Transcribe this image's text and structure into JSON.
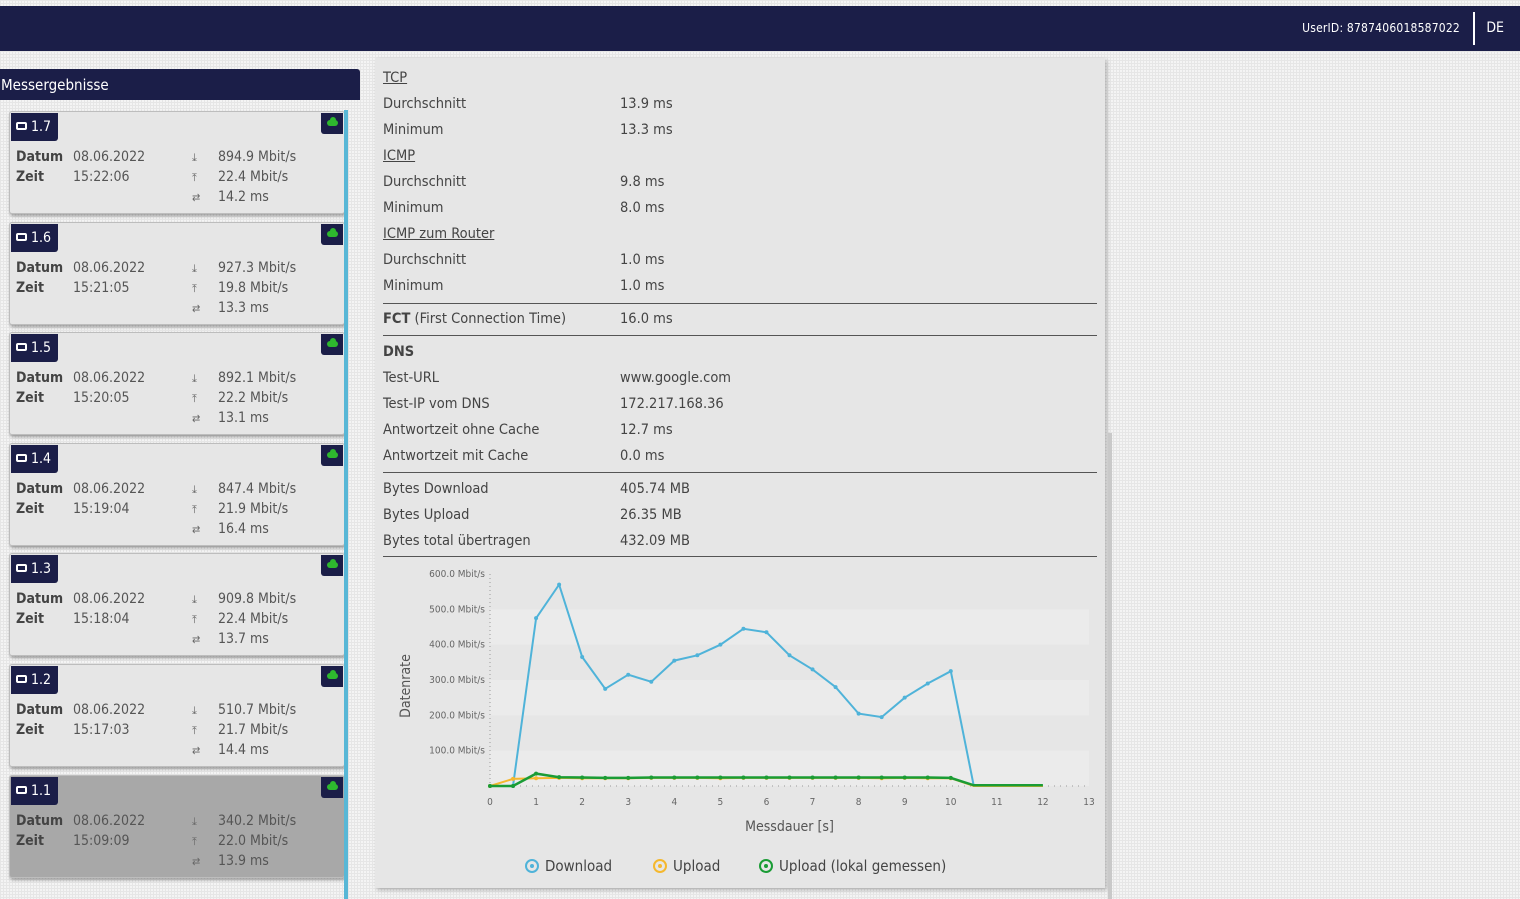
{
  "header": {
    "user_id": "UserID: 8787406018587022",
    "language": "DE"
  },
  "sidebar": {
    "title": "Messergebnisse",
    "labels": {
      "datum": "Datum",
      "zeit": "Zeit"
    },
    "items": [
      {
        "id": "1.7",
        "datum": "08.06.2022",
        "zeit": "15:22:06",
        "download": "894.9 Mbit/s",
        "upload": "22.4 Mbit/s",
        "ping": "14.2 ms",
        "selected": false
      },
      {
        "id": "1.6",
        "datum": "08.06.2022",
        "zeit": "15:21:05",
        "download": "927.3 Mbit/s",
        "upload": "19.8 Mbit/s",
        "ping": "13.3 ms",
        "selected": false
      },
      {
        "id": "1.5",
        "datum": "08.06.2022",
        "zeit": "15:20:05",
        "download": "892.1 Mbit/s",
        "upload": "22.2 Mbit/s",
        "ping": "13.1 ms",
        "selected": false
      },
      {
        "id": "1.4",
        "datum": "08.06.2022",
        "zeit": "15:19:04",
        "download": "847.4 Mbit/s",
        "upload": "21.9 Mbit/s",
        "ping": "16.4 ms",
        "selected": false
      },
      {
        "id": "1.3",
        "datum": "08.06.2022",
        "zeit": "15:18:04",
        "download": "909.8 Mbit/s",
        "upload": "22.4 Mbit/s",
        "ping": "13.7 ms",
        "selected": false
      },
      {
        "id": "1.2",
        "datum": "08.06.2022",
        "zeit": "15:17:03",
        "download": "510.7 Mbit/s",
        "upload": "21.7 Mbit/s",
        "ping": "14.4 ms",
        "selected": false
      },
      {
        "id": "1.1",
        "datum": "08.06.2022",
        "zeit": "15:09:09",
        "download": "340.2 Mbit/s",
        "upload": "22.0 Mbit/s",
        "ping": "13.9 ms",
        "selected": true
      }
    ]
  },
  "details": {
    "tcp": {
      "title": "TCP",
      "avg_label": "Durchschnitt",
      "avg": "13.9 ms",
      "min_label": "Minimum",
      "min": "13.3 ms"
    },
    "icmp": {
      "title": "ICMP",
      "avg_label": "Durchschnitt",
      "avg": "9.8 ms",
      "min_label": "Minimum",
      "min": "8.0 ms"
    },
    "icmp_router": {
      "title": "ICMP zum Router",
      "avg_label": "Durchschnitt",
      "avg": "1.0 ms",
      "min_label": "Minimum",
      "min": "1.0 ms"
    },
    "fct": {
      "label_bold": "FCT",
      "label_rest": " (First Connection Time)",
      "value": "16.0 ms"
    },
    "dns": {
      "title": "DNS",
      "test_url_label": "Test-URL",
      "test_url": "www.google.com",
      "test_ip_label": "Test-IP vom DNS",
      "test_ip": "172.217.168.36",
      "no_cache_label": "Antwortzeit ohne Cache",
      "no_cache": "12.7 ms",
      "cache_label": "Antwortzeit mit Cache",
      "cache": "0.0 ms"
    },
    "bytes": {
      "download_label": "Bytes Download",
      "download": "405.74 MB",
      "upload_label": "Bytes Upload",
      "upload": "26.35 MB",
      "total_label": "Bytes total übertragen",
      "total": "432.09 MB"
    }
  },
  "chart_data": {
    "type": "line",
    "xlabel": "Messdauer [s]",
    "ylabel": "Datenrate",
    "xlim": [
      0,
      13
    ],
    "ylim": [
      0,
      600
    ],
    "x_ticks": [
      0,
      1,
      2,
      3,
      4,
      5,
      6,
      7,
      8,
      9,
      10,
      11,
      12,
      13
    ],
    "y_ticks": [
      "100.0 Mbit/s",
      "200.0 Mbit/s",
      "300.0 Mbit/s",
      "400.0 Mbit/s",
      "500.0 Mbit/s",
      "600.0 Mbit/s"
    ],
    "grid": "horizontal bands",
    "legend_position": "bottom",
    "series": [
      {
        "name": "Download",
        "color": "#4fb3d9",
        "points": [
          [
            0,
            0
          ],
          [
            0.5,
            0
          ],
          [
            1,
            475
          ],
          [
            1.5,
            570
          ],
          [
            2,
            365
          ],
          [
            2.5,
            275
          ],
          [
            3,
            315
          ],
          [
            3.5,
            295
          ],
          [
            4,
            355
          ],
          [
            4.5,
            370
          ],
          [
            5,
            400
          ],
          [
            5.5,
            445
          ],
          [
            6,
            435
          ],
          [
            6.5,
            370
          ],
          [
            7,
            330
          ],
          [
            7.5,
            280
          ],
          [
            8,
            205
          ],
          [
            8.5,
            195
          ],
          [
            9,
            250
          ],
          [
            9.5,
            290
          ],
          [
            10,
            325
          ],
          [
            10.5,
            0
          ],
          [
            11,
            0
          ],
          [
            12,
            0
          ]
        ]
      },
      {
        "name": "Upload",
        "color": "#f5b82e",
        "points": [
          [
            0,
            0
          ],
          [
            0.5,
            20
          ],
          [
            1,
            22
          ],
          [
            1.5,
            23
          ],
          [
            2,
            22
          ],
          [
            2.5,
            22
          ],
          [
            3,
            22
          ],
          [
            3.5,
            23
          ],
          [
            4,
            23
          ],
          [
            4.5,
            23
          ],
          [
            5,
            22
          ],
          [
            5.5,
            23
          ],
          [
            6,
            23
          ],
          [
            6.5,
            23
          ],
          [
            7,
            23
          ],
          [
            7.5,
            23
          ],
          [
            8,
            23
          ],
          [
            8.5,
            22
          ],
          [
            9,
            23
          ],
          [
            9.5,
            22
          ],
          [
            10,
            22
          ],
          [
            10.5,
            0
          ],
          [
            11,
            0
          ],
          [
            12,
            0
          ]
        ]
      },
      {
        "name": "Upload (lokal gemessen)",
        "color": "#1a9c35",
        "points": [
          [
            0,
            0
          ],
          [
            0.5,
            0
          ],
          [
            1,
            35
          ],
          [
            1.5,
            25
          ],
          [
            2,
            24
          ],
          [
            2.5,
            23
          ],
          [
            3,
            23
          ],
          [
            3.5,
            24
          ],
          [
            4,
            24
          ],
          [
            4.5,
            24
          ],
          [
            5,
            24
          ],
          [
            5.5,
            24
          ],
          [
            6,
            24
          ],
          [
            6.5,
            24
          ],
          [
            7,
            24
          ],
          [
            7.5,
            24
          ],
          [
            8,
            24
          ],
          [
            8.5,
            24
          ],
          [
            9,
            24
          ],
          [
            9.5,
            24
          ],
          [
            10,
            23
          ],
          [
            10.5,
            2
          ],
          [
            11,
            2
          ],
          [
            12,
            2
          ]
        ]
      }
    ]
  }
}
